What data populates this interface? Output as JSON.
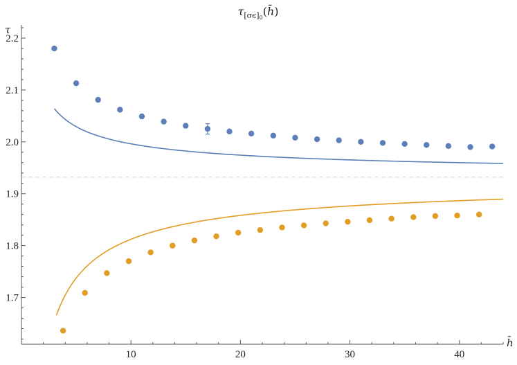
{
  "chart_data": {
    "type": "scatter",
    "title": "τ[σϵ]0(h̄)",
    "title_parts": {
      "main": "τ",
      "subscript": "[σϵ]",
      "subsub": "0",
      "arg": "h̄"
    },
    "xlabel": "h̄",
    "ylabel": "τ",
    "xlim": [
      0,
      44
    ],
    "ylim": [
      1.61,
      2.22
    ],
    "x_ticks": [
      10,
      20,
      30,
      40
    ],
    "x_minor_step": 2,
    "y_ticks": [
      1.7,
      1.8,
      1.9,
      2.0,
      2.1,
      2.2
    ],
    "y_minor_step": 0.02,
    "grid": false,
    "reference_line": {
      "y": 1.932,
      "style": "dashed",
      "color": "#cfcfcf"
    },
    "series": [
      {
        "color": "#5b7fb6",
        "points": [
          {
            "x": 3,
            "y": 2.18
          },
          {
            "x": 5,
            "y": 2.113
          },
          {
            "x": 7,
            "y": 2.081
          },
          {
            "x": 9,
            "y": 2.062
          },
          {
            "x": 11,
            "y": 2.049
          },
          {
            "x": 13,
            "y": 2.039
          },
          {
            "x": 15,
            "y": 2.031
          },
          {
            "x": 17,
            "y": 2.025,
            "err": 0.01
          },
          {
            "x": 19,
            "y": 2.02
          },
          {
            "x": 21,
            "y": 2.016
          },
          {
            "x": 23,
            "y": 2.012
          },
          {
            "x": 25,
            "y": 2.008
          },
          {
            "x": 27,
            "y": 2.005
          },
          {
            "x": 29,
            "y": 2.003
          },
          {
            "x": 31,
            "y": 2.0
          },
          {
            "x": 33,
            "y": 1.998
          },
          {
            "x": 35,
            "y": 1.996
          },
          {
            "x": 37,
            "y": 1.994
          },
          {
            "x": 39,
            "y": 1.992
          },
          {
            "x": 41,
            "y": 1.99
          },
          {
            "x": 43,
            "y": 1.991
          }
        ],
        "fit": {
          "a": 1.932,
          "b": 0.2556,
          "p": 0.6,
          "x_start": 3.0,
          "x_end": 44
        }
      },
      {
        "color": "#e19c24",
        "points": [
          {
            "x": 3.8,
            "y": 1.636
          },
          {
            "x": 5.8,
            "y": 1.709
          },
          {
            "x": 7.8,
            "y": 1.747
          },
          {
            "x": 9.8,
            "y": 1.77
          },
          {
            "x": 11.8,
            "y": 1.787
          },
          {
            "x": 13.8,
            "y": 1.8
          },
          {
            "x": 15.8,
            "y": 1.81
          },
          {
            "x": 17.8,
            "y": 1.818
          },
          {
            "x": 19.8,
            "y": 1.825
          },
          {
            "x": 21.8,
            "y": 1.83
          },
          {
            "x": 23.8,
            "y": 1.835
          },
          {
            "x": 25.8,
            "y": 1.839
          },
          {
            "x": 27.8,
            "y": 1.843
          },
          {
            "x": 29.8,
            "y": 1.846
          },
          {
            "x": 31.8,
            "y": 1.849
          },
          {
            "x": 33.8,
            "y": 1.852
          },
          {
            "x": 35.8,
            "y": 1.855
          },
          {
            "x": 37.8,
            "y": 1.857
          },
          {
            "x": 39.8,
            "y": 1.858
          },
          {
            "x": 41.8,
            "y": 1.86
          }
        ],
        "fit": {
          "a": 1.932,
          "b": -0.6,
          "p": 0.7,
          "x_start": 3.2,
          "x_end": 44
        }
      }
    ]
  }
}
